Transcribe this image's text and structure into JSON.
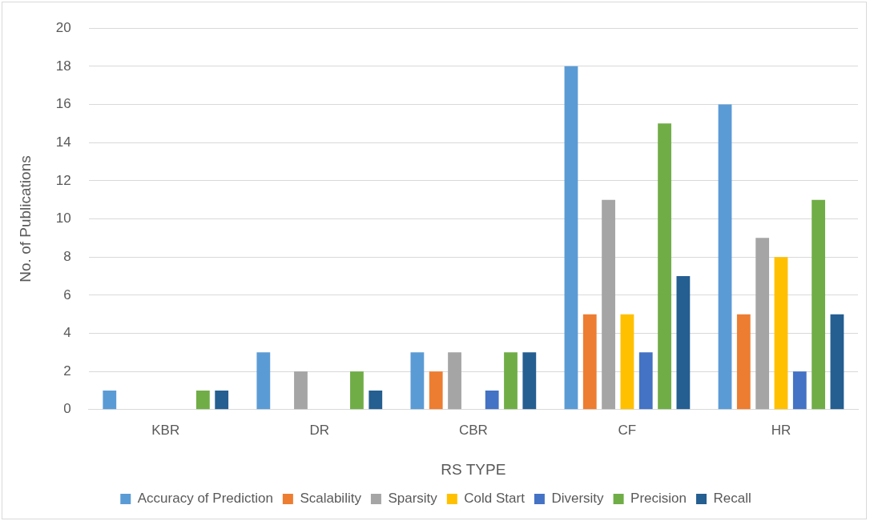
{
  "chart_data": {
    "type": "bar",
    "xlabel": "RS TYPE",
    "ylabel": "No. of Publications",
    "categories": [
      "KBR",
      "DR",
      "CBR",
      "CF",
      "HR"
    ],
    "series": [
      {
        "name": "Accuracy of Prediction",
        "color": "#5b9bd5",
        "values": [
          1,
          3,
          3,
          18,
          16
        ]
      },
      {
        "name": "Scalability",
        "color": "#ed7d31",
        "values": [
          0,
          0,
          2,
          5,
          5
        ]
      },
      {
        "name": "Sparsity",
        "color": "#a5a5a5",
        "values": [
          0,
          2,
          3,
          11,
          9
        ]
      },
      {
        "name": "Cold Start",
        "color": "#ffc000",
        "values": [
          0,
          0,
          0,
          5,
          8
        ]
      },
      {
        "name": "Diversity",
        "color": "#4472c4",
        "values": [
          0,
          0,
          1,
          3,
          2
        ]
      },
      {
        "name": "Precision",
        "color": "#70ad47",
        "values": [
          1,
          2,
          3,
          15,
          11
        ]
      },
      {
        "name": "Recall",
        "color": "#255e91",
        "values": [
          1,
          1,
          3,
          7,
          5
        ]
      }
    ],
    "ylim": [
      0,
      20
    ],
    "yticks": [
      0,
      2,
      4,
      6,
      8,
      10,
      12,
      14,
      16,
      18,
      20
    ],
    "grid": "y",
    "legend": "bottom"
  }
}
